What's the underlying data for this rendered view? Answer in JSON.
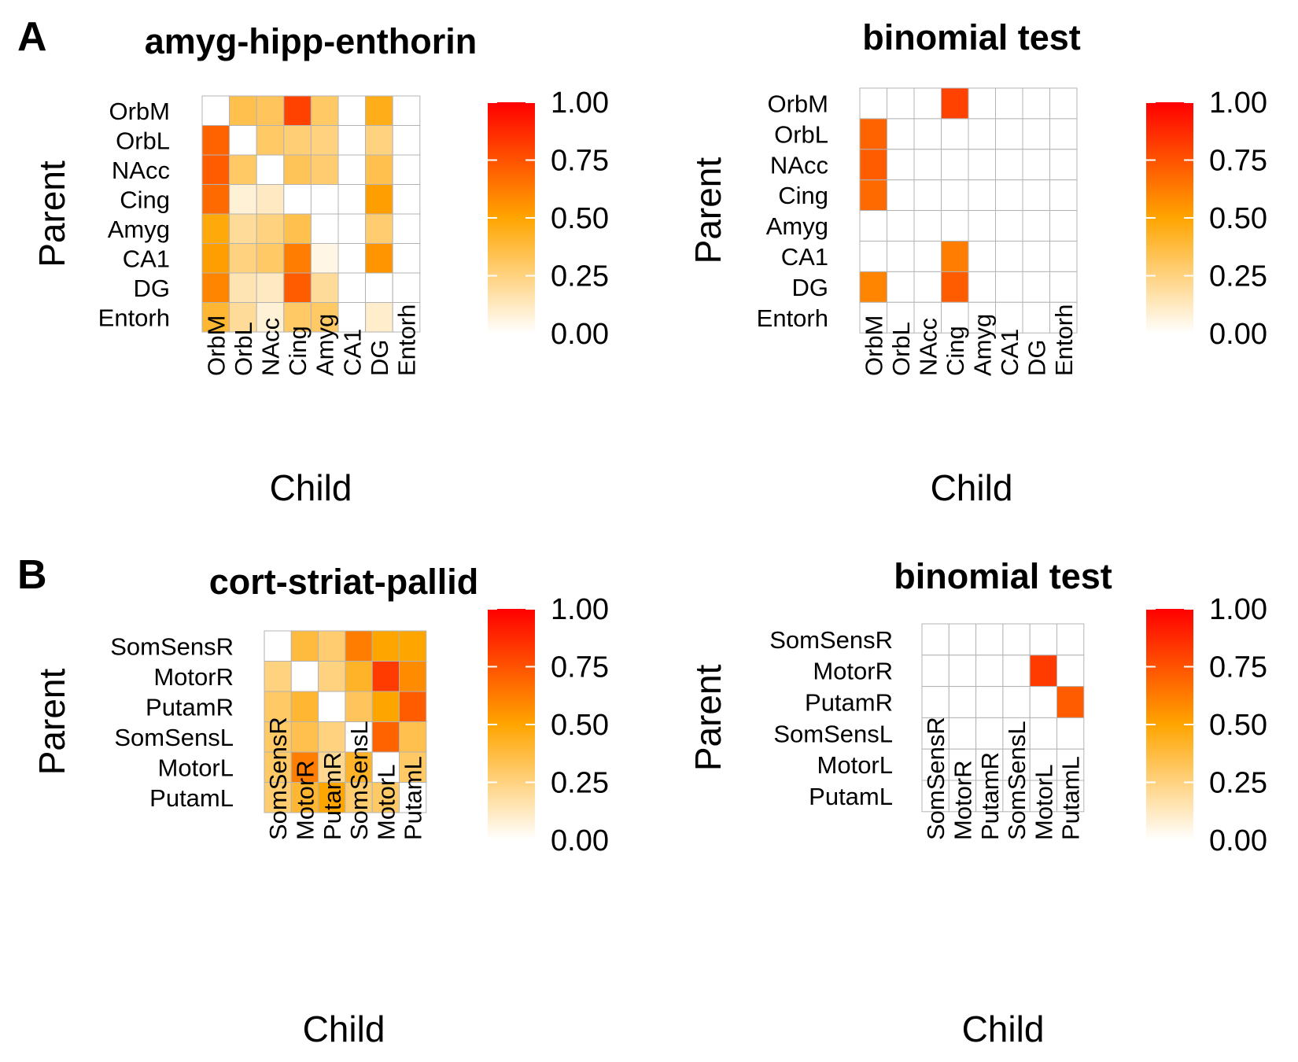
{
  "panels": [
    {
      "letter": "A",
      "charts": [
        0,
        1
      ]
    },
    {
      "letter": "B",
      "charts": [
        2,
        3
      ]
    }
  ],
  "colorbar": {
    "ticks": [
      "1.00",
      "0.75",
      "0.50",
      "0.25",
      "0.00"
    ],
    "tick_values": [
      1.0,
      0.75,
      0.5,
      0.25,
      0.0
    ],
    "colors": {
      "low": "#ffffff",
      "mid": "#ffa500",
      "high": "#ff0000"
    }
  },
  "chart_data": [
    {
      "type": "heatmap",
      "title": "amyg-hipp-enthorin",
      "xlabel": "Child",
      "ylabel": "Parent",
      "rows": [
        "OrbM",
        "OrbL",
        "NAcc",
        "Cing",
        "Amyg",
        "CA1",
        "DG",
        "Entorh"
      ],
      "cols": [
        "OrbM",
        "OrbL",
        "NAcc",
        "Cing",
        "Amyg",
        "CA1",
        "DG",
        "Entorh"
      ],
      "scale": [
        0,
        1
      ],
      "values": [
        [
          0.0,
          0.35,
          0.32,
          0.8,
          0.3,
          0.0,
          0.45,
          0.0
        ],
        [
          0.7,
          0.0,
          0.3,
          0.27,
          0.25,
          0.0,
          0.25,
          0.0
        ],
        [
          0.72,
          0.3,
          0.0,
          0.33,
          0.28,
          0.0,
          0.35,
          0.0
        ],
        [
          0.68,
          0.08,
          0.12,
          0.0,
          0.0,
          0.0,
          0.52,
          0.0
        ],
        [
          0.48,
          0.2,
          0.25,
          0.35,
          0.0,
          0.0,
          0.28,
          0.0
        ],
        [
          0.52,
          0.25,
          0.3,
          0.62,
          0.05,
          0.0,
          0.55,
          0.0
        ],
        [
          0.6,
          0.15,
          0.12,
          0.72,
          0.2,
          0.0,
          0.0,
          0.0
        ],
        [
          0.4,
          0.2,
          0.08,
          0.3,
          0.3,
          0.0,
          0.1,
          0.0
        ]
      ]
    },
    {
      "type": "heatmap",
      "title": "binomial test",
      "xlabel": "Child",
      "ylabel": "Parent",
      "rows": [
        "OrbM",
        "OrbL",
        "NAcc",
        "Cing",
        "Amyg",
        "CA1",
        "DG",
        "Entorh"
      ],
      "cols": [
        "OrbM",
        "OrbL",
        "NAcc",
        "Cing",
        "Amyg",
        "CA1",
        "DG",
        "Entorh"
      ],
      "scale": [
        0,
        1
      ],
      "values": [
        [
          0.0,
          0.0,
          0.0,
          0.8,
          0.0,
          0.0,
          0.0,
          0.0
        ],
        [
          0.7,
          0.0,
          0.0,
          0.0,
          0.0,
          0.0,
          0.0,
          0.0
        ],
        [
          0.72,
          0.0,
          0.0,
          0.0,
          0.0,
          0.0,
          0.0,
          0.0
        ],
        [
          0.68,
          0.0,
          0.0,
          0.0,
          0.0,
          0.0,
          0.0,
          0.0
        ],
        [
          0.0,
          0.0,
          0.0,
          0.0,
          0.0,
          0.0,
          0.0,
          0.0
        ],
        [
          0.0,
          0.0,
          0.0,
          0.62,
          0.0,
          0.0,
          0.0,
          0.0
        ],
        [
          0.6,
          0.0,
          0.0,
          0.72,
          0.0,
          0.0,
          0.0,
          0.0
        ],
        [
          0.0,
          0.0,
          0.0,
          0.0,
          0.0,
          0.0,
          0.0,
          0.0
        ]
      ]
    },
    {
      "type": "heatmap",
      "title": "cort-striat-pallid",
      "xlabel": "Child",
      "ylabel": "Parent",
      "rows": [
        "SomSensR",
        "MotorR",
        "PutamR",
        "SomSensL",
        "MotorL",
        "PutamL"
      ],
      "cols": [
        "SomSensR",
        "MotorR",
        "PutamR",
        "SomSensL",
        "MotorL",
        "PutamL"
      ],
      "scale": [
        0,
        1
      ],
      "values": [
        [
          0.0,
          0.38,
          0.28,
          0.62,
          0.5,
          0.5
        ],
        [
          0.25,
          0.0,
          0.25,
          0.42,
          0.82,
          0.58
        ],
        [
          0.3,
          0.4,
          0.0,
          0.32,
          0.5,
          0.72
        ],
        [
          0.3,
          0.35,
          0.25,
          0.0,
          0.7,
          0.35
        ],
        [
          0.3,
          0.62,
          0.22,
          0.42,
          0.0,
          0.3
        ],
        [
          0.28,
          0.4,
          0.5,
          0.28,
          0.3,
          0.0
        ]
      ]
    },
    {
      "type": "heatmap",
      "title": "binomial test",
      "xlabel": "Child",
      "ylabel": "Parent",
      "rows": [
        "SomSensR",
        "MotorR",
        "PutamR",
        "SomSensL",
        "MotorL",
        "PutamL"
      ],
      "cols": [
        "SomSensR",
        "MotorR",
        "PutamR",
        "SomSensL",
        "MotorL",
        "PutamL"
      ],
      "scale": [
        0,
        1
      ],
      "values": [
        [
          0.0,
          0.0,
          0.0,
          0.0,
          0.0,
          0.0
        ],
        [
          0.0,
          0.0,
          0.0,
          0.0,
          0.82,
          0.0
        ],
        [
          0.0,
          0.0,
          0.0,
          0.0,
          0.0,
          0.72
        ],
        [
          0.0,
          0.0,
          0.0,
          0.0,
          0.0,
          0.0
        ],
        [
          0.0,
          0.0,
          0.0,
          0.0,
          0.0,
          0.0
        ],
        [
          0.0,
          0.0,
          0.0,
          0.0,
          0.0,
          0.0
        ]
      ]
    }
  ]
}
